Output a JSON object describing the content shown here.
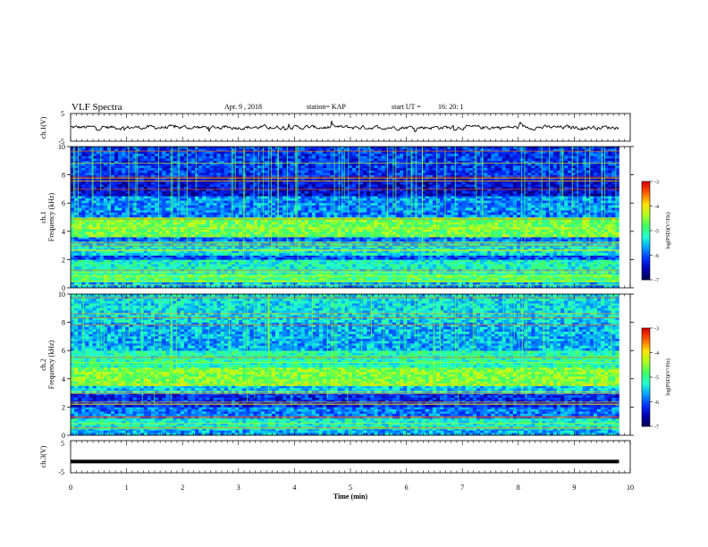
{
  "header": {
    "title": "VLF Spectra",
    "date": "Apr. 9 , 2018",
    "station": "station= KAP",
    "start": "start UT =",
    "start_time": "16: 20: 1"
  },
  "colors": {
    "trace": "#000000",
    "colormap": [
      "#00004a",
      "#0000b0",
      "#0030ff",
      "#00a0ff",
      "#20ffd0",
      "#40ff60",
      "#b0ff20",
      "#ffe000",
      "#ff6000",
      "#e00000",
      "#ffffff"
    ]
  },
  "chart_data": [
    {
      "type": "line",
      "name": "ch1-waveform",
      "ylabel": "ch.1(V)",
      "ylim": [
        -5,
        5
      ],
      "yticks": [
        "5",
        "-5"
      ],
      "description_values": "noisy waveform centered near 0 V with amplitude about ±1.5 V",
      "xlim": [
        0,
        10
      ]
    },
    {
      "type": "heatmap",
      "name": "ch1-spectrogram",
      "ylabel": "ch.1 Frequency (kHz)",
      "ylim": [
        0,
        10
      ],
      "yticks": [
        "0",
        "2",
        "4",
        "6",
        "8",
        "10"
      ],
      "xlim": [
        0,
        10
      ],
      "data_end_min": 9.8,
      "colorbar": {
        "label": "log(PSD)(V²/Hz)",
        "ticks": [
          "-3",
          "-4",
          "-5",
          "-6",
          "-7"
        ],
        "range": [
          -7,
          -3
        ]
      },
      "bands": [
        {
          "f0": 0,
          "f1": 0.4,
          "level": 0.35
        },
        {
          "f0": 0.4,
          "f1": 1.0,
          "level": 0.55
        },
        {
          "f0": 1.0,
          "f1": 2.0,
          "level": 0.45
        },
        {
          "f0": 2.0,
          "f1": 2.3,
          "level": 0.25
        },
        {
          "f0": 2.3,
          "f1": 3.3,
          "level": 0.42
        },
        {
          "f0": 3.3,
          "f1": 3.6,
          "level": 0.28
        },
        {
          "f0": 3.6,
          "f1": 5.0,
          "level": 0.6
        },
        {
          "f0": 5.0,
          "f1": 5.5,
          "level": 0.3
        },
        {
          "f0": 5.5,
          "f1": 6.5,
          "level": 0.32
        },
        {
          "f0": 6.5,
          "f1": 7.8,
          "level": 0.15
        },
        {
          "f0": 7.8,
          "f1": 10,
          "level": 0.22
        }
      ]
    },
    {
      "type": "heatmap",
      "name": "ch2-spectrogram",
      "ylabel": "ch.2 Frequency (kHz)",
      "ylim": [
        0,
        10
      ],
      "yticks": [
        "0",
        "2",
        "4",
        "6",
        "8",
        "10"
      ],
      "xlim": [
        0,
        10
      ],
      "data_end_min": 9.8,
      "colorbar": {
        "label": "log(PSD)(V²/Hz)",
        "ticks": [
          "-3",
          "-4",
          "-5",
          "-6",
          "-7"
        ],
        "range": [
          -7,
          -3
        ]
      },
      "bands": [
        {
          "f0": 0,
          "f1": 0.5,
          "level": 0.35
        },
        {
          "f0": 0.5,
          "f1": 1.2,
          "level": 0.45
        },
        {
          "f0": 1.2,
          "f1": 2.0,
          "level": 0.3
        },
        {
          "f0": 2.0,
          "f1": 3.0,
          "level": 0.2
        },
        {
          "f0": 3.0,
          "f1": 3.5,
          "level": 0.38
        },
        {
          "f0": 3.5,
          "f1": 4.8,
          "level": 0.62
        },
        {
          "f0": 4.8,
          "f1": 6.0,
          "level": 0.48
        },
        {
          "f0": 6.0,
          "f1": 8.0,
          "level": 0.35
        },
        {
          "f0": 8.0,
          "f1": 10,
          "level": 0.4
        }
      ]
    },
    {
      "type": "line",
      "name": "ch3-waveform",
      "ylabel": "ch.3(V)",
      "ylim": [
        -5,
        5
      ],
      "yticks": [
        "5",
        "-5"
      ],
      "level_value": -1.5,
      "xlim": [
        0,
        10
      ]
    }
  ],
  "xaxis": {
    "label": "Time (min)",
    "ticks": [
      "0",
      "1",
      "2",
      "3",
      "4",
      "5",
      "6",
      "7",
      "8",
      "9",
      "10"
    ]
  }
}
